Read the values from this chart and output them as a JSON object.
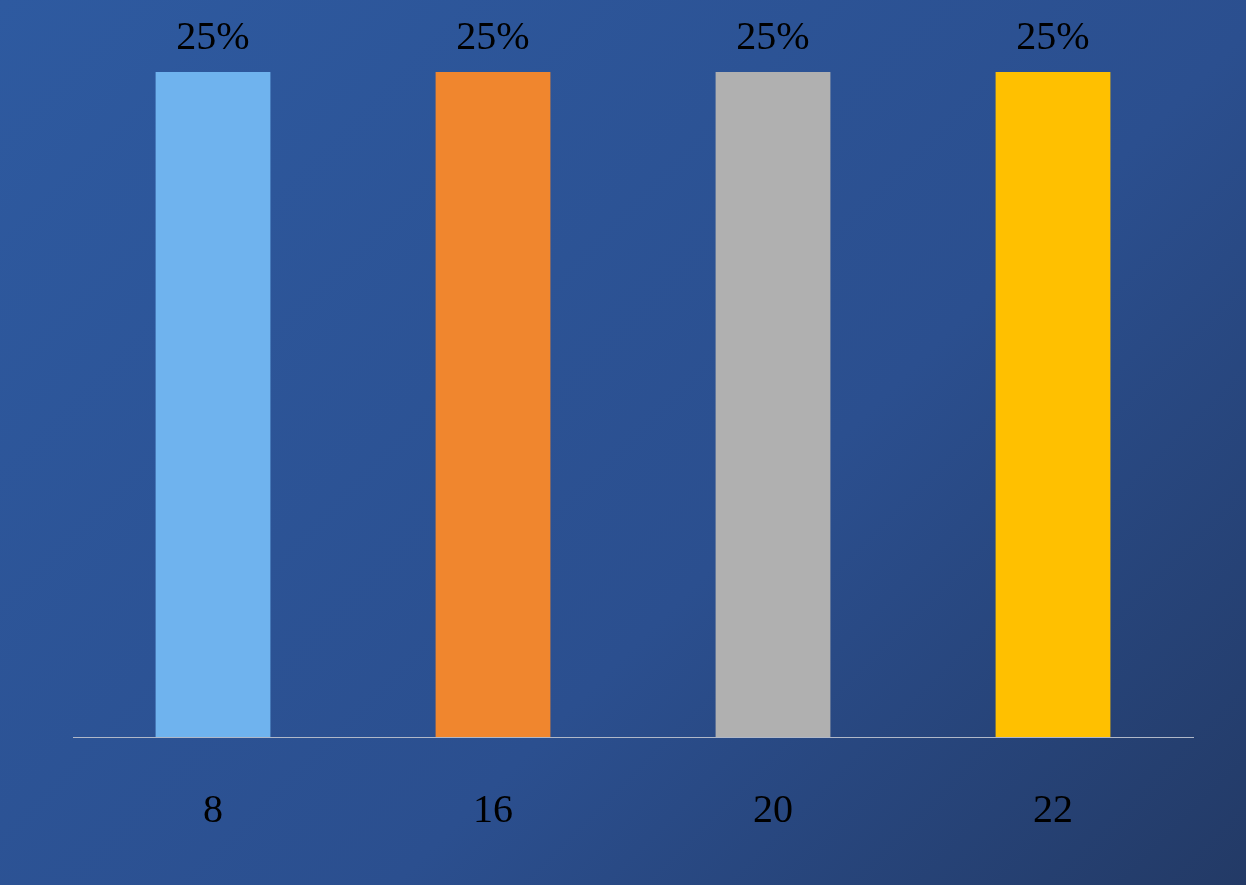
{
  "chart_data": {
    "type": "bar",
    "categories": [
      "8",
      "16",
      "20",
      "22"
    ],
    "values": [
      25,
      25,
      25,
      25
    ],
    "colors": [
      "#6fb3ee",
      "#f0862e",
      "#b0b0b0",
      "#ffc000"
    ],
    "value_labels": [
      "25%",
      "25%",
      "25%",
      "25%"
    ],
    "grid": false,
    "legend": false
  }
}
